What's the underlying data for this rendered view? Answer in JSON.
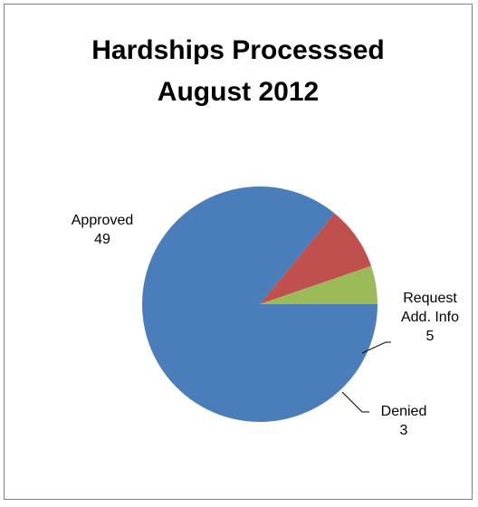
{
  "chart_data": {
    "type": "pie",
    "title_lines": [
      "Hardships Processsed",
      "August 2012"
    ],
    "slices": [
      {
        "label_lines": [
          "Approved",
          "49"
        ],
        "category": "Approved",
        "value": 49,
        "color": "#4a7ebb"
      },
      {
        "label_lines": [
          "Request",
          "Add. Info",
          "5"
        ],
        "category": "Request Add. Info",
        "value": 5,
        "color": "#c0504d"
      },
      {
        "label_lines": [
          "Denied",
          "3"
        ],
        "category": "Denied",
        "value": 3,
        "color": "#9bbb59"
      }
    ],
    "start_angle_deg": 0,
    "direction": "clockwise",
    "legend": "none"
  }
}
